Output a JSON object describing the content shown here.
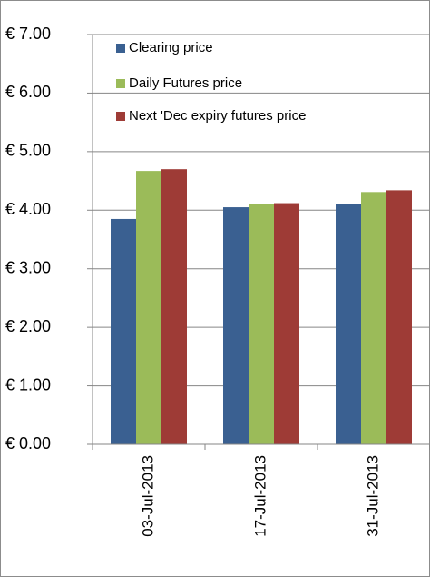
{
  "chart_data": {
    "type": "bar",
    "categories": [
      "03-Jul-2013",
      "17-Jul-2013",
      "31-Jul-2013"
    ],
    "series": [
      {
        "name": "Clearing price",
        "color": "#3a6091",
        "values": [
          3.85,
          4.05,
          4.1
        ]
      },
      {
        "name": "Daily Futures price",
        "color": "#9bbb59",
        "values": [
          4.67,
          4.1,
          4.31
        ]
      },
      {
        "name": "Next 'Dec expiry futures price",
        "color": "#9e3b36",
        "values": [
          4.7,
          4.12,
          4.34
        ]
      }
    ],
    "ylim": [
      0,
      7
    ],
    "yticks": [
      {
        "value": 0,
        "label": "€ 0.00"
      },
      {
        "value": 1,
        "label": "€ 1.00"
      },
      {
        "value": 2,
        "label": "€ 2.00"
      },
      {
        "value": 3,
        "label": "€ 3.00"
      },
      {
        "value": 4,
        "label": "€ 4.00"
      },
      {
        "value": 5,
        "label": "€ 5.00"
      },
      {
        "value": 6,
        "label": "€ 6.00"
      },
      {
        "value": 7,
        "label": "€ 7.00"
      }
    ],
    "grid": true,
    "legend": "top-left"
  }
}
